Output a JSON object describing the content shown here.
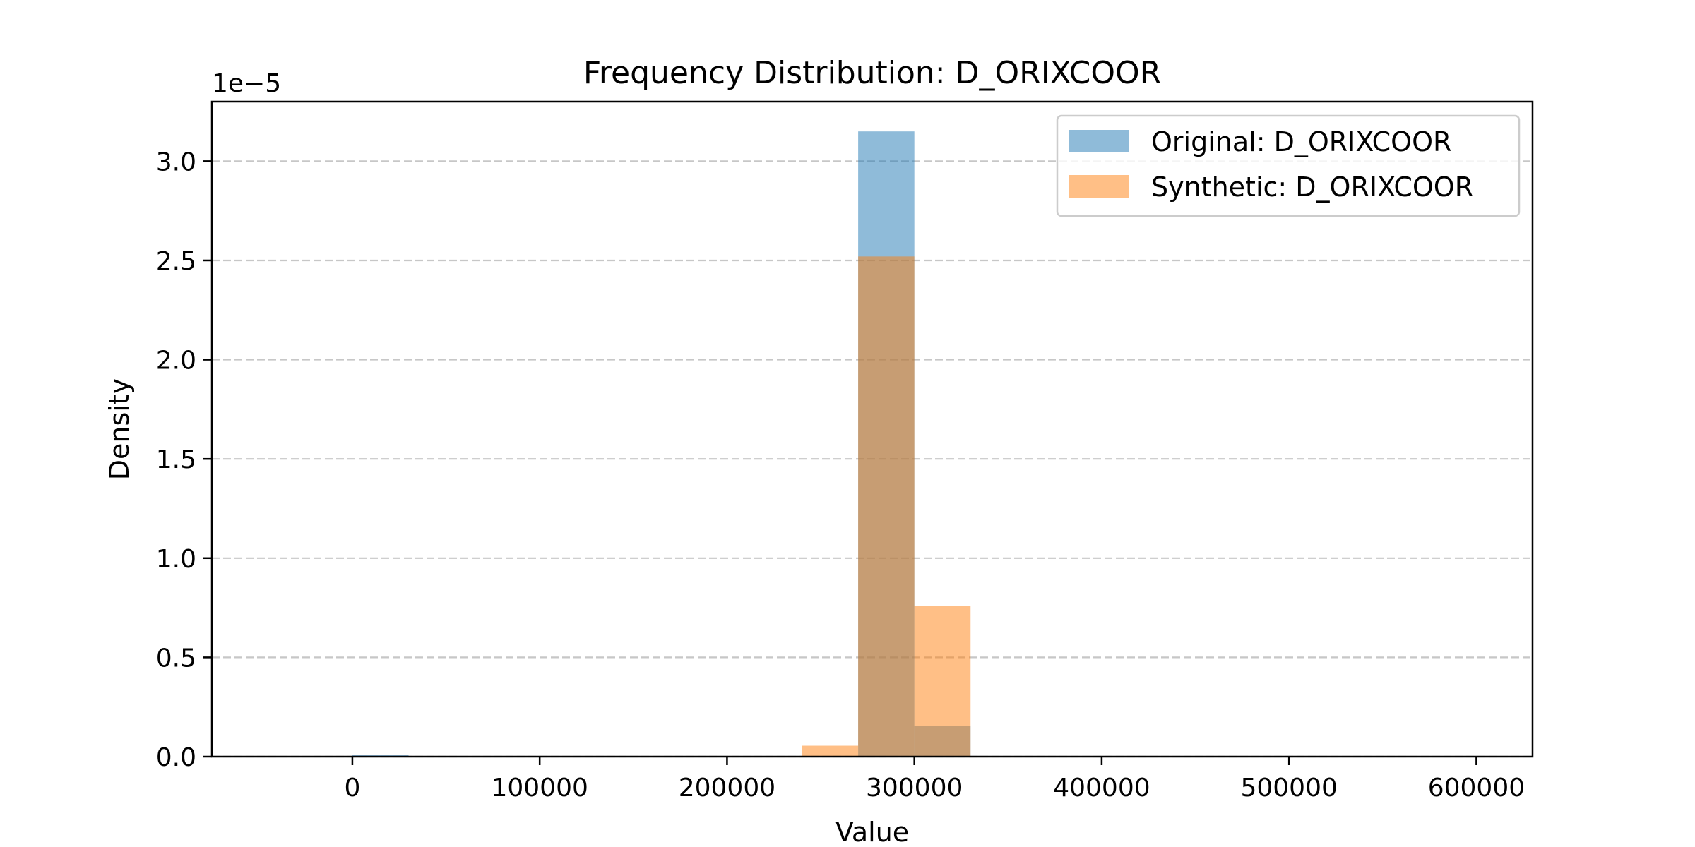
{
  "chart_data": {
    "type": "bar",
    "title": "Frequency Distribution: D_ORIXCOOR",
    "xlabel": "Value",
    "ylabel": "Density",
    "y_scale_label": "1e−5",
    "xlim": [
      -75000,
      630000
    ],
    "ylim": [
      0,
      3.3e-05
    ],
    "x_ticks": [
      0,
      100000,
      200000,
      300000,
      400000,
      500000,
      600000
    ],
    "x_tick_labels": [
      "0",
      "100000",
      "200000",
      "300000",
      "400000",
      "500000",
      "600000"
    ],
    "y_ticks": [
      0,
      5e-06,
      1e-05,
      1.5e-05,
      2e-05,
      2.5e-05,
      3e-05
    ],
    "y_tick_labels": [
      "0.0",
      "0.5",
      "1.0",
      "1.5",
      "2.0",
      "2.5",
      "3.0"
    ],
    "grid": "y-dashed",
    "legend_position": "top-right",
    "series": [
      {
        "name": "Original: D_ORIXCOOR",
        "color": "#1f77b4",
        "opacity": 0.5,
        "bins": [
          {
            "x0": 0,
            "x1": 30000,
            "density": 1e-07
          },
          {
            "x0": 270000,
            "x1": 300000,
            "density": 3.15e-05
          },
          {
            "x0": 300000,
            "x1": 330000,
            "density": 1.55e-06
          }
        ]
      },
      {
        "name": "Synthetic: D_ORIXCOOR",
        "color": "#ff7f0e",
        "opacity": 0.5,
        "bins": [
          {
            "x0": 240000,
            "x1": 270000,
            "density": 5.5e-07
          },
          {
            "x0": 270000,
            "x1": 300000,
            "density": 2.52e-05
          },
          {
            "x0": 300000,
            "x1": 330000,
            "density": 7.6e-06
          }
        ]
      }
    ]
  }
}
